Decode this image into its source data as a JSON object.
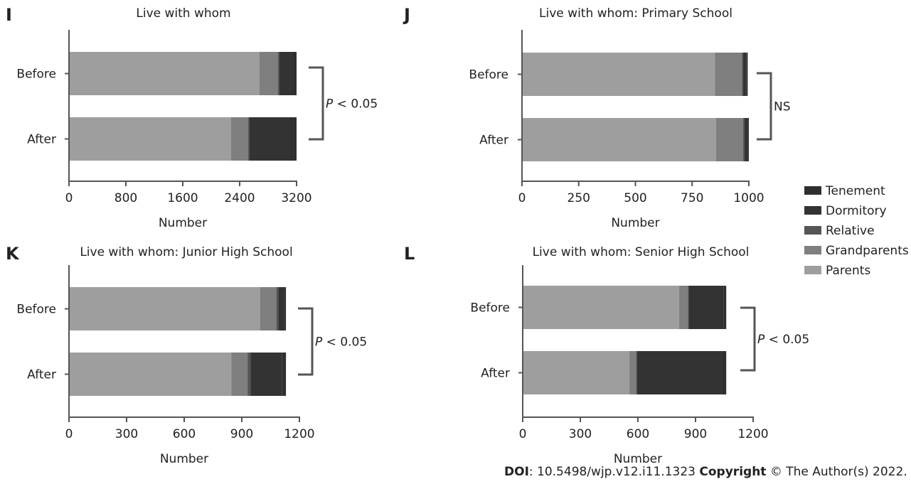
{
  "legend": {
    "items": [
      {
        "label": "Tenement",
        "color": "#2f2f2f"
      },
      {
        "label": "Dormitory",
        "color": "#333333"
      },
      {
        "label": "Relative",
        "color": "#555555"
      },
      {
        "label": "Grandparents",
        "color": "#7f7f7f"
      },
      {
        "label": "Parents",
        "color": "#9e9e9e"
      }
    ]
  },
  "footer": {
    "doi_label": "DOI",
    "doi_value": ": 10.5498/wjp.v12.i11.1323 ",
    "copyright_label": "Copyright",
    "copyright_value": " © The Author(s) 2022."
  },
  "chart_data": [
    {
      "panel": "I",
      "type": "bar",
      "orientation": "horizontal",
      "stacked": true,
      "title": "Live with whom",
      "xlabel": "Number",
      "xlim": [
        0,
        3200
      ],
      "xticks": [
        "0",
        "800",
        "1600",
        "2400",
        "3200"
      ],
      "categories": [
        "Before",
        "After"
      ],
      "series": [
        {
          "name": "Parents",
          "values": [
            2680,
            2280
          ]
        },
        {
          "name": "Grandparents",
          "values": [
            260,
            240
          ]
        },
        {
          "name": "Relative",
          "values": [
            20,
            20
          ]
        },
        {
          "name": "Dormitory",
          "values": [
            180,
            560
          ]
        },
        {
          "name": "Tenement",
          "values": [
            60,
            100
          ]
        }
      ],
      "significance": "P < 0.05"
    },
    {
      "panel": "J",
      "type": "bar",
      "orientation": "horizontal",
      "stacked": true,
      "title": "Live with whom: Primary School",
      "xlabel": "Number",
      "xlim": [
        0,
        1000
      ],
      "xticks": [
        "0",
        "250",
        "500",
        "750",
        "1000"
      ],
      "categories": [
        "Before",
        "After"
      ],
      "series": [
        {
          "name": "Parents",
          "values": [
            850,
            855
          ]
        },
        {
          "name": "Grandparents",
          "values": [
            120,
            120
          ]
        },
        {
          "name": "Relative",
          "values": [
            5,
            5
          ]
        },
        {
          "name": "Dormitory",
          "values": [
            15,
            15
          ]
        },
        {
          "name": "Tenement",
          "values": [
            5,
            5
          ]
        }
      ],
      "significance": "NS"
    },
    {
      "panel": "K",
      "type": "bar",
      "orientation": "horizontal",
      "stacked": true,
      "title": "Live with whom: Junior High School",
      "xlabel": "Number",
      "xlim": [
        0,
        1200
      ],
      "xticks": [
        "0",
        "300",
        "600",
        "900",
        "1200"
      ],
      "categories": [
        "Before",
        "After"
      ],
      "series": [
        {
          "name": "Parents",
          "values": [
            995,
            845
          ]
        },
        {
          "name": "Grandparents",
          "values": [
            85,
            85
          ]
        },
        {
          "name": "Relative",
          "values": [
            10,
            15
          ]
        },
        {
          "name": "Dormitory",
          "values": [
            30,
            165
          ]
        },
        {
          "name": "Tenement",
          "values": [
            10,
            20
          ]
        }
      ],
      "significance": "P < 0.05"
    },
    {
      "panel": "L",
      "type": "bar",
      "orientation": "horizontal",
      "stacked": true,
      "title": "Live with whom: Senior High School",
      "xlabel": "Number",
      "xlim": [
        0,
        1200
      ],
      "xticks": [
        "0",
        "300",
        "600",
        "900",
        "1200"
      ],
      "categories": [
        "Before",
        "After"
      ],
      "series": [
        {
          "name": "Parents",
          "values": [
            815,
            555
          ]
        },
        {
          "name": "Grandparents",
          "values": [
            45,
            35
          ]
        },
        {
          "name": "Relative",
          "values": [
            5,
            5
          ]
        },
        {
          "name": "Dormitory",
          "values": [
            180,
            440
          ]
        },
        {
          "name": "Tenement",
          "values": [
            15,
            25
          ]
        }
      ],
      "significance": "P < 0.05"
    }
  ]
}
